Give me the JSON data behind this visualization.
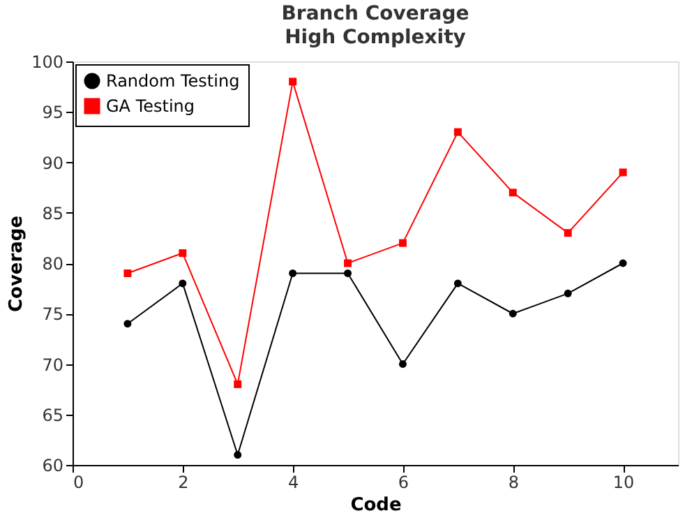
{
  "chart_data": {
    "type": "line",
    "title": "Branch Coverage",
    "subtitle": "High Complexity",
    "xlabel": "Code",
    "ylabel": "Coverage",
    "x": [
      1,
      2,
      3,
      4,
      5,
      6,
      7,
      8,
      9,
      10
    ],
    "series": [
      {
        "name": "Random Testing",
        "color": "#000000",
        "marker": "circle",
        "values": [
          74,
          78,
          61,
          79,
          79,
          70,
          78,
          75,
          77,
          80
        ]
      },
      {
        "name": "GA Testing",
        "color": "#ff0000",
        "marker": "square",
        "values": [
          79,
          81,
          68,
          98,
          80,
          82,
          93,
          87,
          83,
          89
        ]
      }
    ],
    "xlim": [
      0,
      11
    ],
    "xticks": [
      0,
      2,
      4,
      6,
      8,
      10
    ],
    "ylim": [
      60,
      100
    ],
    "yticks": [
      60,
      65,
      70,
      75,
      80,
      85,
      90,
      95,
      100
    ],
    "grid": false,
    "legend": "top left",
    "line_style": "solid"
  }
}
